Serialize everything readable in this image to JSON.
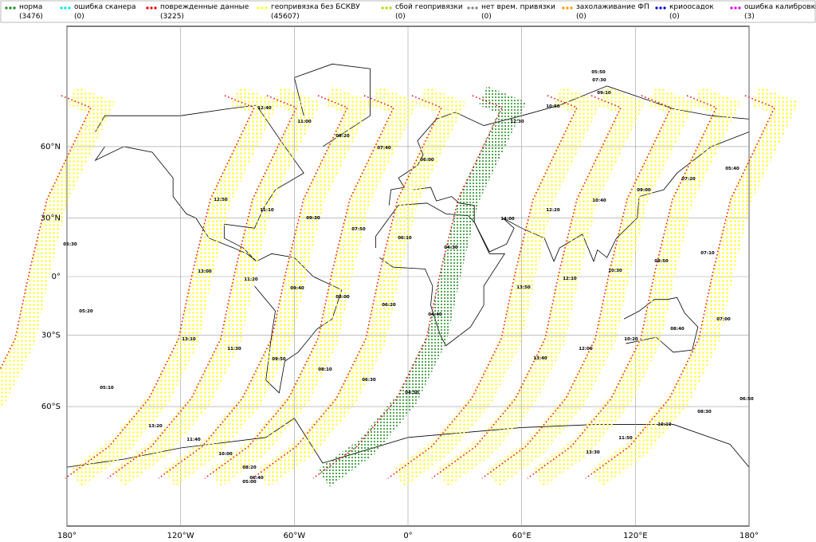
{
  "legend": [
    {
      "name": "норма",
      "count": "(3476)",
      "color": "#1a8a1a"
    },
    {
      "name": "ошибка сканера",
      "count": "(0)",
      "color": "#00e5ee"
    },
    {
      "name": "поврежденные данные",
      "count": "(3225)",
      "color": "#e60000"
    },
    {
      "name": "геопривязка без БСКВУ",
      "count": "(45607)",
      "color": "#ffff33"
    },
    {
      "name": "сбой геопривязки",
      "count": "(0)",
      "color": "#b5d900"
    },
    {
      "name": "нет врем. привязки",
      "count": "(0)",
      "color": "#808080"
    },
    {
      "name": "захолаживание ФП",
      "count": "(0)",
      "color": "#ff9900"
    },
    {
      "name": "криоосадок",
      "count": "(0)",
      "color": "#0000cc"
    },
    {
      "name": "ошибка калибровки",
      "count": "(3)",
      "color": "#e600e6"
    }
  ],
  "map": {
    "xticks": [
      {
        "value": -180,
        "label": "180°"
      },
      {
        "value": -120,
        "label": "120°W"
      },
      {
        "value": -60,
        "label": "60°W"
      },
      {
        "value": 0,
        "label": "0°"
      },
      {
        "value": 60,
        "label": "60°E"
      },
      {
        "value": 120,
        "label": "120°E"
      },
      {
        "value": 180,
        "label": "180°"
      }
    ],
    "yticks": [
      {
        "value": 60,
        "label": "60°N"
      },
      {
        "value": 30,
        "label": "30°N"
      },
      {
        "value": 0,
        "label": "0°"
      },
      {
        "value": -30,
        "label": "30°S"
      },
      {
        "value": -60,
        "label": "60°S"
      }
    ],
    "time_labels": [
      "12:40",
      "11:00",
      "09:20",
      "07:40",
      "06:00",
      "05:50",
      "07:30",
      "09:10",
      "10:50",
      "12:30",
      "12:50",
      "11:10",
      "09:30",
      "07:50",
      "06:10",
      "04:30",
      "14:00",
      "12:20",
      "10:40",
      "09:00",
      "07:20",
      "05:40",
      "05:30",
      "13:00",
      "11:20",
      "09:40",
      "08:00",
      "06:20",
      "04:40",
      "13:50",
      "12:10",
      "10:30",
      "08:50",
      "07:10",
      "05:20",
      "13:10",
      "11:30",
      "09:50",
      "08:10",
      "06:30",
      "04:50",
      "13:40",
      "12:00",
      "10:20",
      "08:40",
      "07:00",
      "05:10",
      "13:20",
      "11:40",
      "10:00",
      "08:20",
      "06:40",
      "05:00",
      "06:50",
      "08:30",
      "10:10",
      "11:50",
      "13:30"
    ]
  }
}
